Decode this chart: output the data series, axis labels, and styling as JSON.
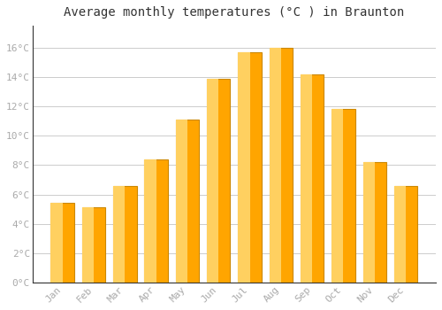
{
  "months": [
    "Jan",
    "Feb",
    "Mar",
    "Apr",
    "May",
    "Jun",
    "Jul",
    "Aug",
    "Sep",
    "Oct",
    "Nov",
    "Dec"
  ],
  "values": [
    5.4,
    5.1,
    6.6,
    8.4,
    11.1,
    13.9,
    15.7,
    16.0,
    14.2,
    11.8,
    8.2,
    6.6
  ],
  "bar_color": "#FFA500",
  "bar_edge_color": "#CC8800",
  "background_color": "#FFFFFF",
  "grid_color": "#CCCCCC",
  "title": "Average monthly temperatures (°C ) in Braunton",
  "title_fontsize": 10,
  "tick_label_color": "#AAAAAA",
  "ylim": [
    0,
    17.5
  ],
  "yticks": [
    0,
    2,
    4,
    6,
    8,
    10,
    12,
    14,
    16
  ],
  "ytick_labels": [
    "0°C",
    "2°C",
    "4°C",
    "6°C",
    "8°C",
    "10°C",
    "12°C",
    "14°C",
    "16°C"
  ]
}
